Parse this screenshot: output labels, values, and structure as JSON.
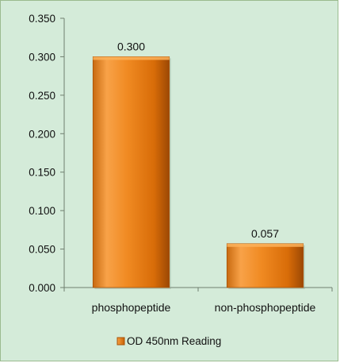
{
  "chart_data": {
    "type": "bar",
    "categories": [
      "phosphopeptide",
      "non-phosphopeptide"
    ],
    "series": [
      {
        "name": "OD 450nm Reading",
        "values": [
          0.3,
          0.057
        ]
      }
    ],
    "data_labels": [
      "0.300",
      "0.057"
    ],
    "ylim": [
      0,
      0.35
    ],
    "yticks": [
      "0.000",
      "0.050",
      "0.100",
      "0.150",
      "0.200",
      "0.250",
      "0.300",
      "0.350"
    ],
    "grid": false,
    "legend_position": "bottom",
    "colors": {
      "background": "#d4ebd9",
      "bar_light": "#f8a040",
      "bar_mid": "#ec7a12",
      "bar_dark": "#b85606",
      "axis": "#6f7f6f"
    }
  }
}
